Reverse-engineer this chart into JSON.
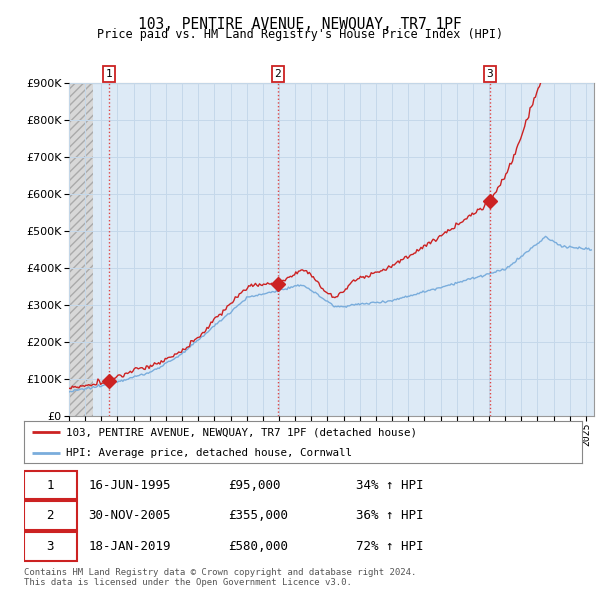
{
  "title": "103, PENTIRE AVENUE, NEWQUAY, TR7 1PF",
  "subtitle": "Price paid vs. HM Land Registry's House Price Index (HPI)",
  "ylim": [
    0,
    900000
  ],
  "yticks": [
    0,
    100000,
    200000,
    300000,
    400000,
    500000,
    600000,
    700000,
    800000,
    900000
  ],
  "xlim_start": 1993.0,
  "xlim_end": 2025.5,
  "sale_dates": [
    1995.46,
    2005.92,
    2019.05
  ],
  "sale_prices": [
    95000,
    355000,
    580000
  ],
  "sale_labels": [
    "1",
    "2",
    "3"
  ],
  "hpi_line_color": "#7aaddc",
  "sale_line_color": "#cc2222",
  "sale_dot_color": "#cc2222",
  "vline_color": "#dd4444",
  "grid_color": "#c5d8ea",
  "background_color": "#ddeaf6",
  "hatch_bg": "#e8e8e8",
  "legend_line1": "103, PENTIRE AVENUE, NEWQUAY, TR7 1PF (detached house)",
  "legend_line2": "HPI: Average price, detached house, Cornwall",
  "table_data": [
    [
      "1",
      "16-JUN-1995",
      "£95,000",
      "34% ↑ HPI"
    ],
    [
      "2",
      "30-NOV-2005",
      "£355,000",
      "36% ↑ HPI"
    ],
    [
      "3",
      "18-JAN-2019",
      "£580,000",
      "72% ↑ HPI"
    ]
  ],
  "footer": "Contains HM Land Registry data © Crown copyright and database right 2024.\nThis data is licensed under the Open Government Licence v3.0."
}
